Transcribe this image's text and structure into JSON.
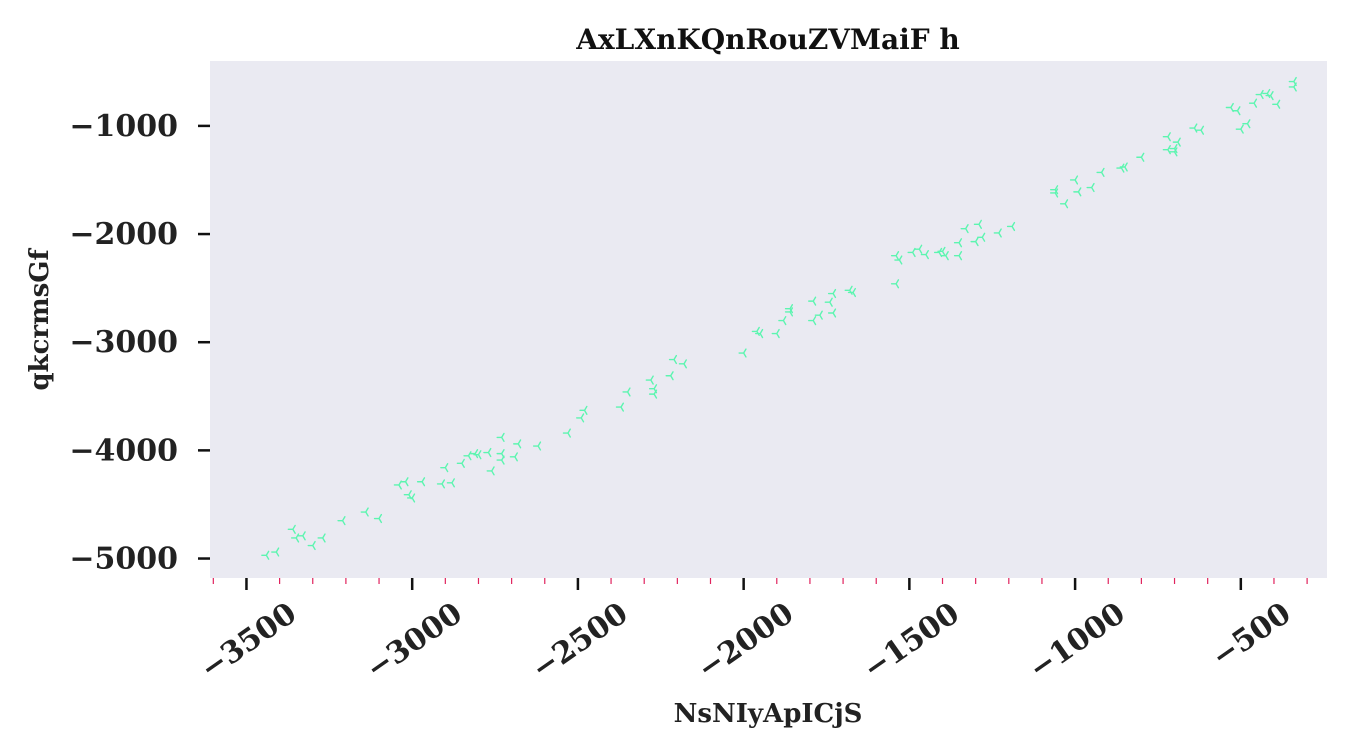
{
  "chart_data": {
    "type": "scatter",
    "title": "AxLXnKQnRouZVMaiF h",
    "xlabel": "NsNIyApICjS",
    "ylabel": "qkcrmsGf",
    "xlim": [
      -3610,
      -240
    ],
    "ylim": [
      -5180,
      -400
    ],
    "xticks": [
      -3500,
      -3000,
      -2500,
      -2000,
      -1500,
      -1000,
      -500
    ],
    "xtick_labels": [
      "−3500",
      "−3000",
      "−2500",
      "−2000",
      "−1500",
      "−1000",
      "−500"
    ],
    "yticks": [
      -1000,
      -2000,
      -3000,
      -4000,
      -5000
    ],
    "ytick_labels": [
      "−1000",
      "−2000",
      "−3000",
      "−4000",
      "−5000"
    ],
    "x_minor_step": 100,
    "grid": false,
    "background": "#eaeaf2",
    "marker": "tri_left",
    "marker_color": "#5cf5b0",
    "minor_tick_color": "#e0245e",
    "points": [
      [
        -3440,
        -4970
      ],
      [
        -3410,
        -4940
      ],
      [
        -3360,
        -4730
      ],
      [
        -3350,
        -4810
      ],
      [
        -3330,
        -4790
      ],
      [
        -3300,
        -4880
      ],
      [
        -3270,
        -4810
      ],
      [
        -3210,
        -4650
      ],
      [
        -3140,
        -4570
      ],
      [
        -3100,
        -4630
      ],
      [
        -3040,
        -4320
      ],
      [
        -3020,
        -4290
      ],
      [
        -3010,
        -4410
      ],
      [
        -3000,
        -4440
      ],
      [
        -2970,
        -4290
      ],
      [
        -2910,
        -4310
      ],
      [
        -2900,
        -4160
      ],
      [
        -2880,
        -4300
      ],
      [
        -2850,
        -4120
      ],
      [
        -2830,
        -4050
      ],
      [
        -2810,
        -4030
      ],
      [
        -2800,
        -4040
      ],
      [
        -2770,
        -4020
      ],
      [
        -2760,
        -4190
      ],
      [
        -2730,
        -3880
      ],
      [
        -2730,
        -4030
      ],
      [
        -2730,
        -4090
      ],
      [
        -2690,
        -4060
      ],
      [
        -2680,
        -3940
      ],
      [
        -2620,
        -3960
      ],
      [
        -2530,
        -3840
      ],
      [
        -2490,
        -3700
      ],
      [
        -2480,
        -3630
      ],
      [
        -2370,
        -3600
      ],
      [
        -2350,
        -3460
      ],
      [
        -2280,
        -3350
      ],
      [
        -2270,
        -3480
      ],
      [
        -2270,
        -3430
      ],
      [
        -2220,
        -3310
      ],
      [
        -2210,
        -3160
      ],
      [
        -2180,
        -3200
      ],
      [
        -2000,
        -3100
      ],
      [
        -1960,
        -2900
      ],
      [
        -1950,
        -2920
      ],
      [
        -1900,
        -2920
      ],
      [
        -1880,
        -2800
      ],
      [
        -1860,
        -2690
      ],
      [
        -1860,
        -2720
      ],
      [
        -1790,
        -2620
      ],
      [
        -1790,
        -2800
      ],
      [
        -1770,
        -2750
      ],
      [
        -1740,
        -2630
      ],
      [
        -1730,
        -2550
      ],
      [
        -1730,
        -2730
      ],
      [
        -1680,
        -2520
      ],
      [
        -1670,
        -2540
      ],
      [
        -1540,
        -2200
      ],
      [
        -1540,
        -2460
      ],
      [
        -1530,
        -2240
      ],
      [
        -1490,
        -2170
      ],
      [
        -1470,
        -2140
      ],
      [
        -1450,
        -2190
      ],
      [
        -1410,
        -2170
      ],
      [
        -1400,
        -2160
      ],
      [
        -1390,
        -2200
      ],
      [
        -1350,
        -2080
      ],
      [
        -1350,
        -2200
      ],
      [
        -1330,
        -1950
      ],
      [
        -1300,
        -2070
      ],
      [
        -1290,
        -1910
      ],
      [
        -1280,
        -2030
      ],
      [
        -1230,
        -1990
      ],
      [
        -1190,
        -1930
      ],
      [
        -1060,
        -1620
      ],
      [
        -1060,
        -1590
      ],
      [
        -1030,
        -1720
      ],
      [
        -1000,
        -1500
      ],
      [
        -990,
        -1610
      ],
      [
        -950,
        -1570
      ],
      [
        -920,
        -1430
      ],
      [
        -860,
        -1390
      ],
      [
        -850,
        -1380
      ],
      [
        -800,
        -1290
      ],
      [
        -720,
        -1100
      ],
      [
        -720,
        -1220
      ],
      [
        -700,
        -1240
      ],
      [
        -700,
        -1210
      ],
      [
        -690,
        -1150
      ],
      [
        -640,
        -1020
      ],
      [
        -620,
        -1040
      ],
      [
        -530,
        -830
      ],
      [
        -510,
        -860
      ],
      [
        -500,
        -1030
      ],
      [
        -480,
        -980
      ],
      [
        -460,
        -790
      ],
      [
        -440,
        -710
      ],
      [
        -420,
        -700
      ],
      [
        -410,
        -720
      ],
      [
        -390,
        -800
      ],
      [
        -340,
        -640
      ],
      [
        -340,
        -590
      ]
    ]
  }
}
